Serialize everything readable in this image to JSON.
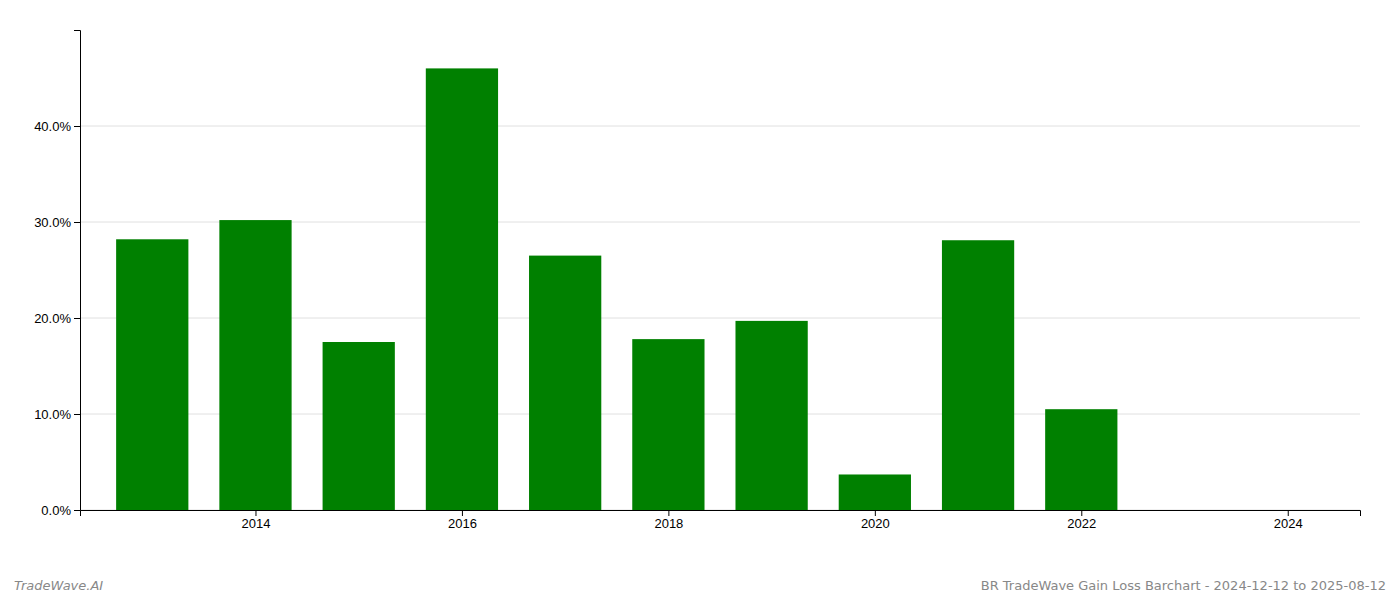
{
  "chart_data": {
    "type": "bar",
    "title": "BR TradeWave Gain Loss Barchart - 2024-12-12 to 2025-08-12",
    "annotations": [
      "TradeWave.AI"
    ],
    "x": [
      2013,
      2014,
      2015,
      2016,
      2017,
      2018,
      2019,
      2020,
      2021,
      2022,
      2023
    ],
    "values": [
      0.282,
      0.302,
      0.175,
      0.46,
      0.265,
      0.178,
      0.197,
      0.037,
      0.281,
      0.105,
      0.0
    ],
    "color": "#008000",
    "xlim": [
      2012.3,
      2024.7
    ],
    "xticks": [
      2014,
      2016,
      2018,
      2020,
      2022,
      2024
    ],
    "ylim": [
      0.0,
      0.5
    ],
    "yticks": [
      {
        "value": 0.0,
        "label": "0.0%"
      },
      {
        "value": 0.1,
        "label": "10.0%"
      },
      {
        "value": 0.2,
        "label": "20.0%"
      },
      {
        "value": 0.3,
        "label": "30.0%"
      },
      {
        "value": 0.4,
        "label": "40.0%"
      }
    ],
    "grid": true
  }
}
